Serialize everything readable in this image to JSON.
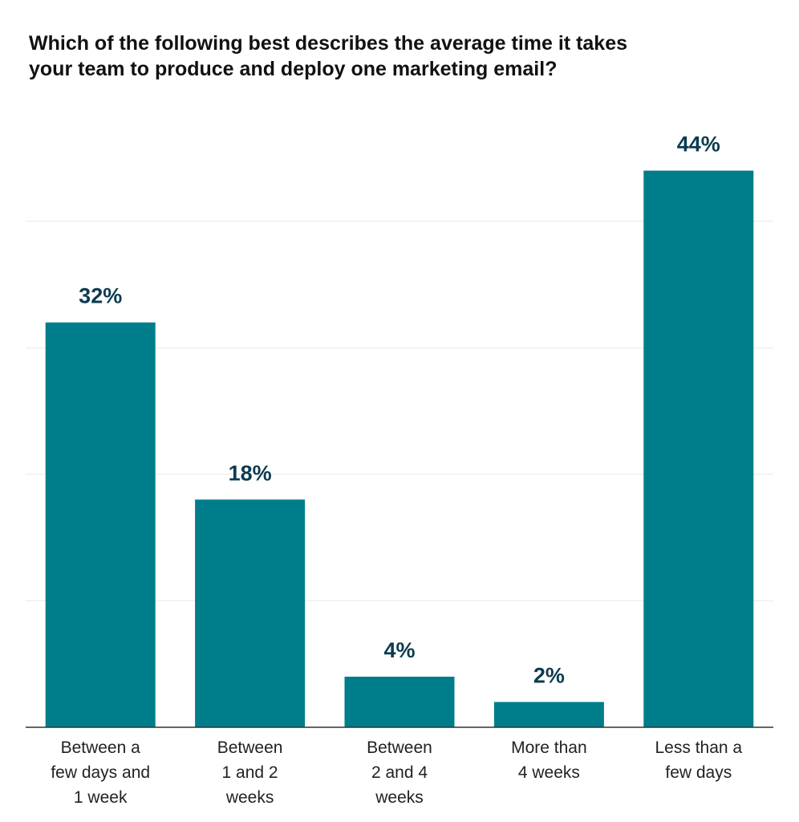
{
  "chart_data": {
    "type": "bar",
    "title_lines": [
      "Which of the following best describes the average time it takes",
      "your team to produce and deploy one marketing email?"
    ],
    "categories": [
      [
        "Between a",
        "few days and",
        "1 week"
      ],
      [
        "Between",
        "1 and 2",
        "weeks"
      ],
      [
        "Between",
        "2 and 4",
        "weeks"
      ],
      [
        "More than",
        "4 weeks"
      ],
      [
        "Less than a",
        "few days"
      ]
    ],
    "values": [
      32,
      18,
      4,
      2,
      44
    ],
    "value_labels": [
      "32%",
      "18%",
      "4%",
      "2%",
      "44%"
    ],
    "ylim": [
      0,
      50
    ],
    "grid": true,
    "legend": "none",
    "colors": {
      "bar": "#007d8a",
      "value_label": "#0c3b4f"
    }
  }
}
